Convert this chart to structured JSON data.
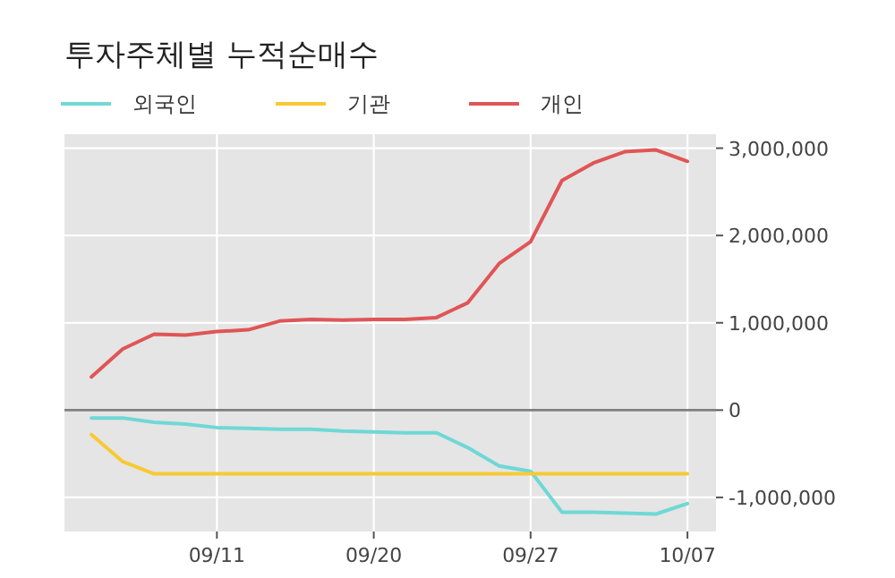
{
  "chart_data": {
    "type": "line",
    "title": "투자주체별 누적순매수",
    "categories": [
      null,
      null,
      null,
      null,
      "09/11",
      null,
      null,
      null,
      null,
      "09/20",
      null,
      null,
      null,
      null,
      "09/27",
      null,
      null,
      null,
      null,
      "10/07"
    ],
    "series": [
      {
        "name": "외국인",
        "color": "#6fd8d6",
        "values": [
          -90000,
          -90000,
          -140000,
          -160000,
          -200000,
          -210000,
          -220000,
          -220000,
          -240000,
          -250000,
          -260000,
          -260000,
          -430000,
          -640000,
          -700000,
          -1170000,
          -1170000,
          -1180000,
          -1190000,
          -1070000
        ]
      },
      {
        "name": "기관",
        "color": "#f7c934",
        "values": [
          -280000,
          -590000,
          -730000,
          -730000,
          -730000,
          -730000,
          -730000,
          -730000,
          -730000,
          -730000,
          -730000,
          -730000,
          -730000,
          -730000,
          -730000,
          -730000,
          -730000,
          -730000,
          -730000,
          -730000
        ]
      },
      {
        "name": "개인",
        "color": "#e05556",
        "values": [
          380000,
          700000,
          870000,
          860000,
          900000,
          920000,
          1020000,
          1040000,
          1030000,
          1040000,
          1040000,
          1060000,
          1230000,
          1680000,
          1930000,
          2630000,
          2830000,
          2960000,
          2980000,
          2850000
        ]
      }
    ],
    "ylim": [
      -1390000,
      3160000
    ],
    "yticks": [
      {
        "value": -1000000,
        "label": "-1,000,000"
      },
      0,
      {
        "value": 1000000,
        "label": "1,000,000"
      },
      {
        "value": 2000000,
        "label": "2,000,000"
      },
      {
        "value": 3000000,
        "label": "3,000,000"
      }
    ],
    "ref_lines": [
      {
        "axis": "y",
        "value": 0,
        "color": "#7f7f7f"
      }
    ],
    "grid": true,
    "legend": "top left",
    "line_style": "solid",
    "marker": "none"
  }
}
